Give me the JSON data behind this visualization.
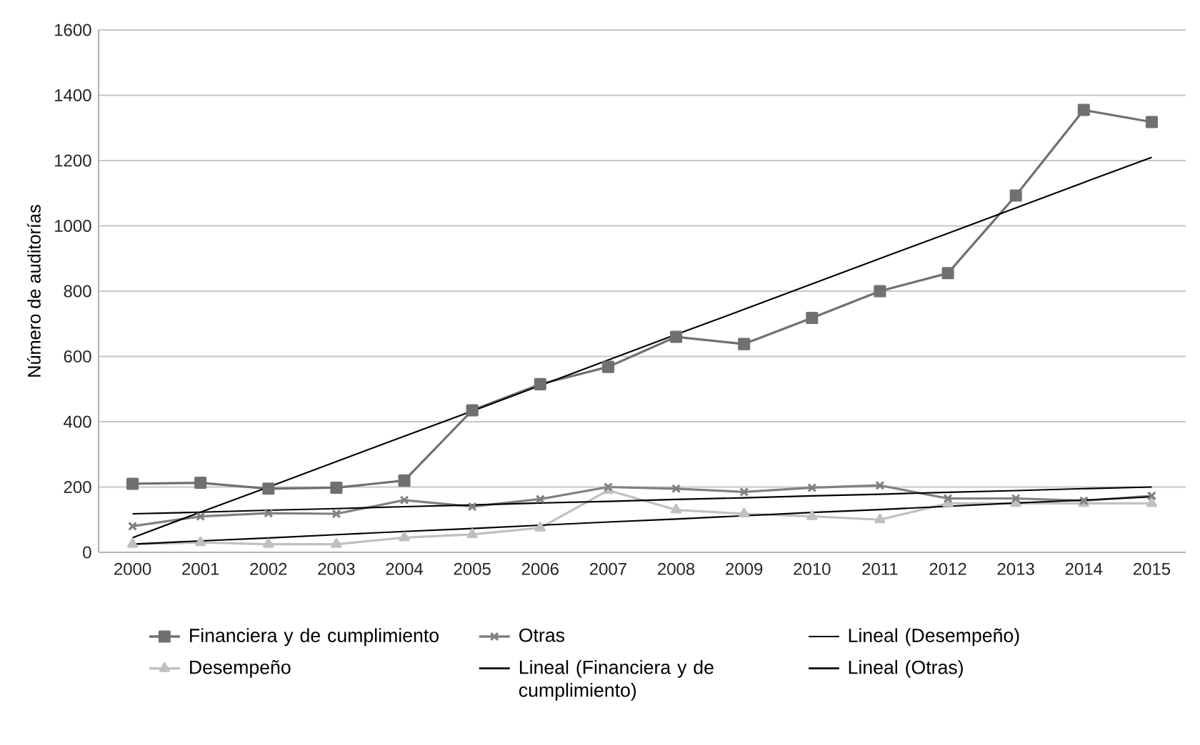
{
  "chart_data": {
    "type": "line",
    "ylabel": "Número de auditorías",
    "x": [
      2000,
      2001,
      2002,
      2003,
      2004,
      2005,
      2006,
      2007,
      2008,
      2009,
      2010,
      2011,
      2012,
      2013,
      2014,
      2015
    ],
    "xlim": [
      1999.5,
      2015.5
    ],
    "xticks": [
      2000,
      2001,
      2002,
      2003,
      2004,
      2005,
      2006,
      2007,
      2008,
      2009,
      2010,
      2011,
      2012,
      2013,
      2014,
      2015
    ],
    "ylim": [
      0,
      1600
    ],
    "yticks": [
      0,
      200,
      400,
      600,
      800,
      1000,
      1200,
      1400,
      1600
    ],
    "grid": "y",
    "legend": "bottom",
    "series": [
      {
        "name": "Financiera  y de cumplimiento",
        "color": "#707070",
        "marker": "square",
        "values": [
          210,
          213,
          195,
          198,
          220,
          435,
          515,
          568,
          660,
          638,
          718,
          800,
          855,
          1093,
          1355,
          1318
        ]
      },
      {
        "name": "Desempeño",
        "color": "#c0c0c0",
        "marker": "triangle",
        "values": [
          25,
          30,
          25,
          25,
          45,
          55,
          75,
          190,
          130,
          118,
          110,
          100,
          150,
          150,
          150,
          150
        ]
      },
      {
        "name": "Otras",
        "color": "#808080",
        "marker": "cross",
        "values": [
          80,
          110,
          120,
          118,
          160,
          140,
          163,
          200,
          195,
          185,
          198,
          205,
          165,
          165,
          158,
          173
        ]
      },
      {
        "name": "Lineal (Financiera y de cumplimiento)",
        "color": "#000000",
        "marker": "none",
        "values": [
          45,
          123,
          200,
          278,
          356,
          433,
          511,
          589,
          667,
          744,
          822,
          900,
          977,
          1055,
          1133,
          1210
        ]
      },
      {
        "name": "Lineal (Desempeño)",
        "color": "#000000",
        "marker": "none",
        "values": [
          25,
          35,
          44,
          54,
          64,
          73,
          83,
          93,
          102,
          112,
          122,
          131,
          141,
          151,
          160,
          170
        ]
      },
      {
        "name": "Lineal (Otras)",
        "color": "#000000",
        "marker": "none",
        "values": [
          118,
          123,
          129,
          134,
          140,
          145,
          151,
          156,
          162,
          167,
          173,
          178,
          184,
          189,
          195,
          200
        ]
      }
    ]
  }
}
